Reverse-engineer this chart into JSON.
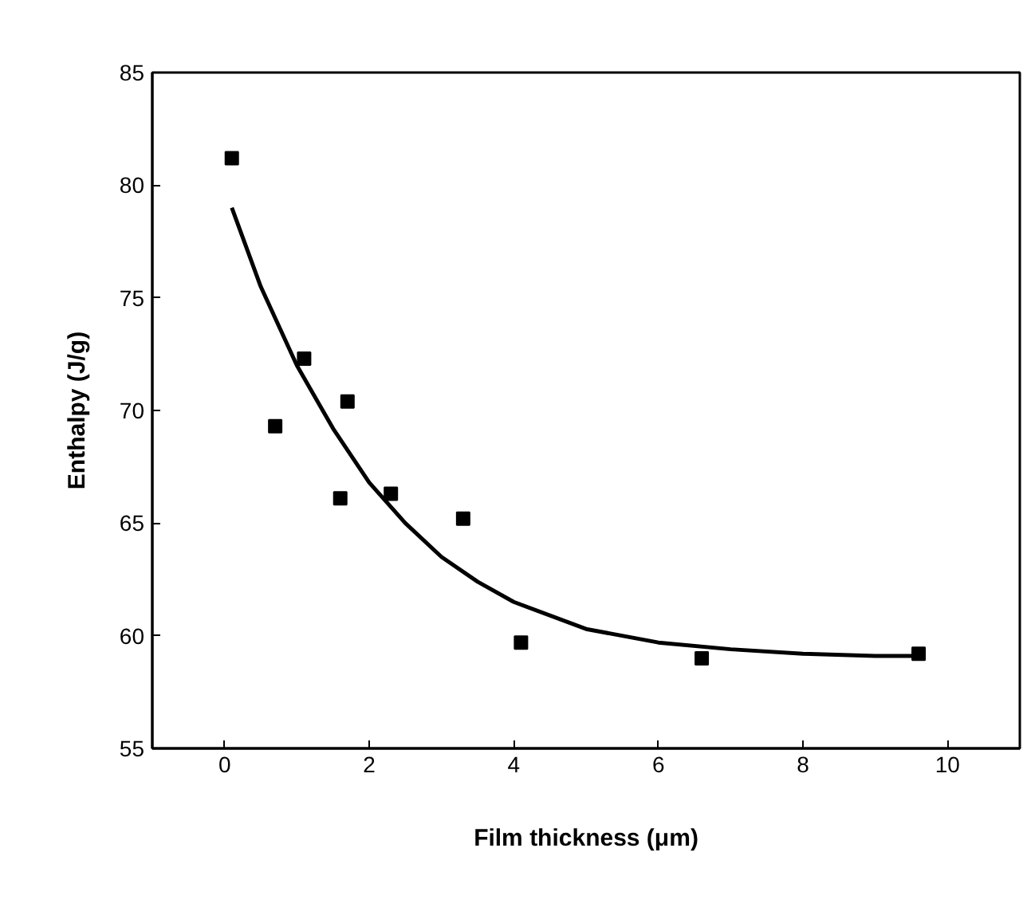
{
  "chart_data": {
    "type": "scatter",
    "xlabel": "Film thickness (μm)",
    "ylabel": "Enthalpy (J/g)",
    "xlim": [
      -1,
      11
    ],
    "ylim": [
      55,
      85
    ],
    "xticks": [
      0,
      2,
      4,
      6,
      8,
      10
    ],
    "yticks": [
      55,
      60,
      65,
      70,
      75,
      80,
      85
    ],
    "grid": false,
    "series": [
      {
        "color": "#000000",
        "marker": "square",
        "x": [
          0.1,
          0.7,
          1.1,
          1.6,
          1.7,
          2.3,
          3.3,
          4.1,
          6.6,
          9.6
        ],
        "values": [
          81.2,
          69.3,
          72.3,
          66.1,
          70.4,
          66.3,
          65.2,
          59.7,
          59.0,
          59.2
        ]
      },
      {
        "type": "line",
        "color": "#000000",
        "line_style": "solid",
        "marker": "none",
        "x": [
          0.1,
          0.5,
          1,
          1.5,
          2,
          2.5,
          3,
          3.5,
          4,
          5,
          6,
          7,
          8,
          9,
          9.6
        ],
        "values": [
          79.0,
          75.5,
          72.0,
          69.2,
          66.8,
          65.0,
          63.5,
          62.4,
          61.5,
          60.3,
          59.7,
          59.4,
          59.2,
          59.1,
          59.1
        ]
      }
    ]
  }
}
